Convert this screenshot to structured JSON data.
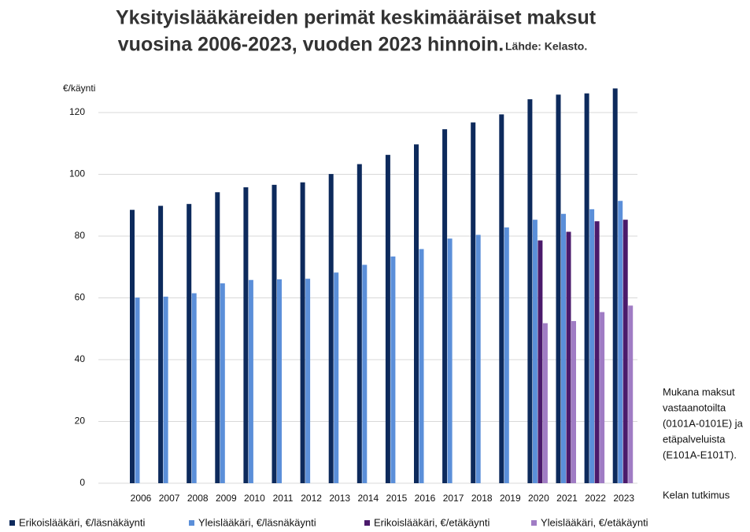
{
  "chart_data": {
    "type": "bar",
    "title_lines": [
      "Yksityislääkäreiden perimät keskimääräiset maksut",
      "vuosina 2006-2023, vuoden 2023 hinnoin."
    ],
    "source": "Lähde: Kelasto.",
    "y_label": "€/käynti",
    "note_lines": [
      "Mukana maksut",
      "vastaanotoilta",
      "(0101A-0101E) ja",
      "etäpalveluista",
      "(E101A-E101T)."
    ],
    "credit": "Kelan tutkimus",
    "categories": [
      "2006",
      "2007",
      "2008",
      "2009",
      "2010",
      "2011",
      "2012",
      "2013",
      "2014",
      "2015",
      "2016",
      "2017",
      "2018",
      "2019",
      "2020",
      "2021",
      "2022",
      "2023"
    ],
    "series": [
      {
        "name": "Erikoislääkäri, €/läsnäkäynti",
        "color": "#0d2a5c",
        "values": [
          88.5,
          89.8,
          90.4,
          94.2,
          95.8,
          96.6,
          97.4,
          100.1,
          103.3,
          106.3,
          109.7,
          114.6,
          116.8,
          119.4,
          124.3,
          125.8,
          126.2,
          127.8
        ]
      },
      {
        "name": "Yleislääkäri, €/läsnäkäynti",
        "color": "#5b8fd9",
        "values": [
          60.1,
          60.4,
          61.5,
          64.7,
          65.8,
          66.0,
          66.2,
          68.2,
          70.7,
          73.4,
          75.8,
          79.2,
          80.4,
          82.8,
          85.3,
          87.2,
          88.7,
          91.4
        ]
      },
      {
        "name": "Erikoislääkäri, €/etäkäynti",
        "color": "#4b1a6b",
        "values": [
          null,
          null,
          null,
          null,
          null,
          null,
          null,
          null,
          null,
          null,
          null,
          null,
          null,
          null,
          78.6,
          81.4,
          84.8,
          85.3
        ]
      },
      {
        "name": "Yleislääkäri, €/etäkäynti",
        "color": "#a07cc4",
        "values": [
          null,
          null,
          null,
          null,
          null,
          null,
          null,
          null,
          null,
          null,
          null,
          null,
          null,
          null,
          51.8,
          52.5,
          55.4,
          57.5
        ]
      }
    ],
    "ylim": [
      0,
      130
    ],
    "yticks": [
      0,
      20,
      40,
      60,
      80,
      100,
      120
    ],
    "grid": true
  }
}
